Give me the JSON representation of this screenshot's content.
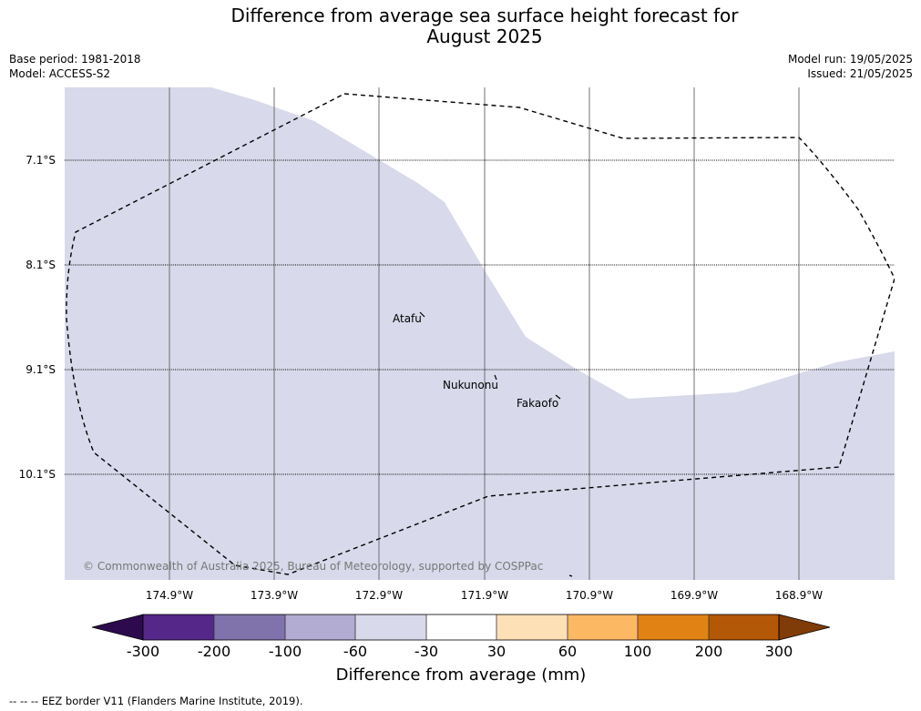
{
  "title_line1": "Difference from average sea surface height forecast for",
  "title_line2": "August 2025",
  "meta": {
    "base_period": "Base period: 1981-2018",
    "model": "Model: ACCESS-S2",
    "model_run": "Model run: 19/05/2025",
    "issued": "Issued: 21/05/2025"
  },
  "map": {
    "lat_labels": [
      "7.1°S",
      "8.1°S",
      "9.1°S",
      "10.1°S"
    ],
    "lon_labels": [
      "174.9°W",
      "173.9°W",
      "172.9°W",
      "171.9°W",
      "170.9°W",
      "169.9°W",
      "168.9°W"
    ],
    "places": [
      "Atafu",
      "Nukunonu",
      "Fakaofo"
    ],
    "copyright": "© Commonwealth of Australia 2025, Bureau of Meteorology, supported by COSPPac",
    "shaded_category": "-60 to -30"
  },
  "colorbar": {
    "label": "Difference from average (mm)",
    "ticks": [
      "-300",
      "-200",
      "-100",
      "-60",
      "-30",
      "30",
      "60",
      "100",
      "200",
      "300"
    ],
    "colors": [
      "#2d0a4e",
      "#542788",
      "#8073ac",
      "#b2abd2",
      "#d8daeb",
      "#ffffff",
      "#fee0b6",
      "#fdb863",
      "#e08214",
      "#b35806",
      "#7f3b08"
    ]
  },
  "footnote": "--  --  -- EEZ border V11 (Flanders Marine Institute, 2019)."
}
